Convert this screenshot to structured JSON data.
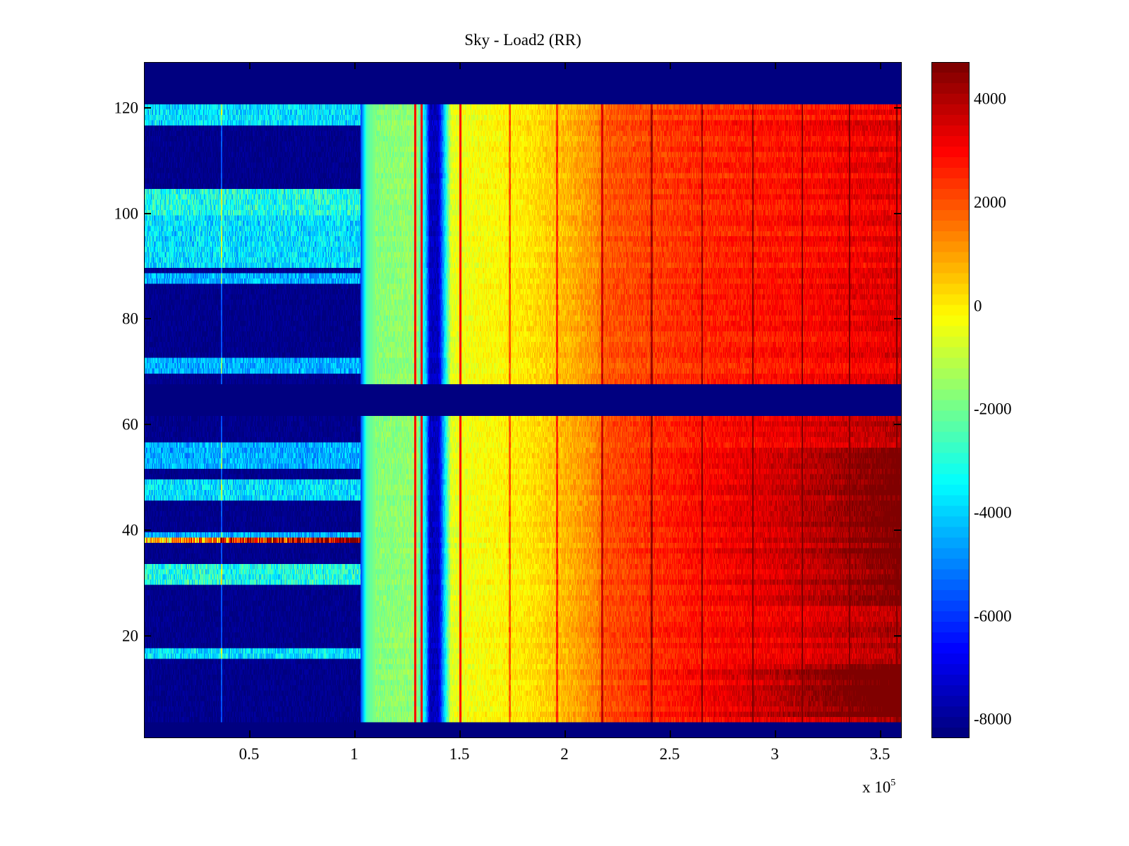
{
  "chart_data": {
    "type": "heatmap",
    "title": "Sky - Load2 (RR)",
    "xlabel": "",
    "ylabel": "",
    "x_multiplier_label": "x 10",
    "x_multiplier_exponent": "5",
    "xlim": [
      0,
      3.604
    ],
    "ylim": [
      0.5,
      128.5
    ],
    "x_ticks": [
      0.5,
      1,
      1.5,
      2,
      2.5,
      3,
      3.5
    ],
    "x_tick_labels": [
      "0.5",
      "1",
      "1.5",
      "2",
      "2.5",
      "3",
      "3.5"
    ],
    "y_ticks": [
      20,
      40,
      60,
      80,
      100,
      120
    ],
    "y_tick_labels": [
      "20",
      "40",
      "60",
      "80",
      "100",
      "120"
    ],
    "colormap": "jet",
    "clim": [
      -8380,
      4700
    ],
    "colorbar_ticks": [
      4000,
      2000,
      0,
      -2000,
      -4000,
      -6000,
      -8000
    ],
    "colorbar_tick_labels": [
      "4000",
      "2000",
      "0",
      "-2000",
      "-4000",
      "-6000",
      "-8000"
    ],
    "n_channels": 128,
    "blank_channel_ranges": [
      [
        1,
        3
      ],
      [
        62,
        67
      ],
      [
        121,
        128
      ]
    ],
    "value_profile_x": [
      0,
      0.99,
      1.03,
      1.06,
      1.1,
      1.3,
      1.34,
      1.36,
      1.4,
      1.43,
      1.46,
      1.6,
      1.8,
      2.0,
      2.15,
      2.2,
      2.5,
      2.8,
      3.1,
      3.4,
      3.604
    ],
    "value_profile_v": [
      -8300,
      -8200,
      -6000,
      -2500,
      -1800,
      -1600,
      -4000,
      -7500,
      -7500,
      -4000,
      -600,
      -300,
      0,
      600,
      1200,
      1900,
      2300,
      2600,
      2800,
      3100,
      3300
    ],
    "active_left_channel_bands": [
      [
        16,
        17,
        0.35
      ],
      [
        30,
        33,
        0.4
      ],
      [
        38,
        38,
        0.7
      ],
      [
        39,
        39,
        0.3
      ],
      [
        46,
        49,
        0.35
      ],
      [
        52,
        56,
        0.3
      ],
      [
        70,
        72,
        0.3
      ],
      [
        87,
        88,
        0.3
      ],
      [
        90,
        99,
        0.35
      ],
      [
        100,
        104,
        0.4
      ],
      [
        117,
        120,
        0.35
      ]
    ],
    "strong_left_channel": 38,
    "vertical_line_x": [
      0.37,
      1.29,
      1.32,
      1.505,
      1.74,
      1.965,
      2.18,
      2.415,
      2.655,
      2.895,
      3.13,
      3.355,
      3.58
    ],
    "warm_channel_bands_lower": [
      [
        5,
        14,
        1500
      ],
      [
        26,
        55,
        900
      ]
    ],
    "lower_half_boost": 600
  }
}
